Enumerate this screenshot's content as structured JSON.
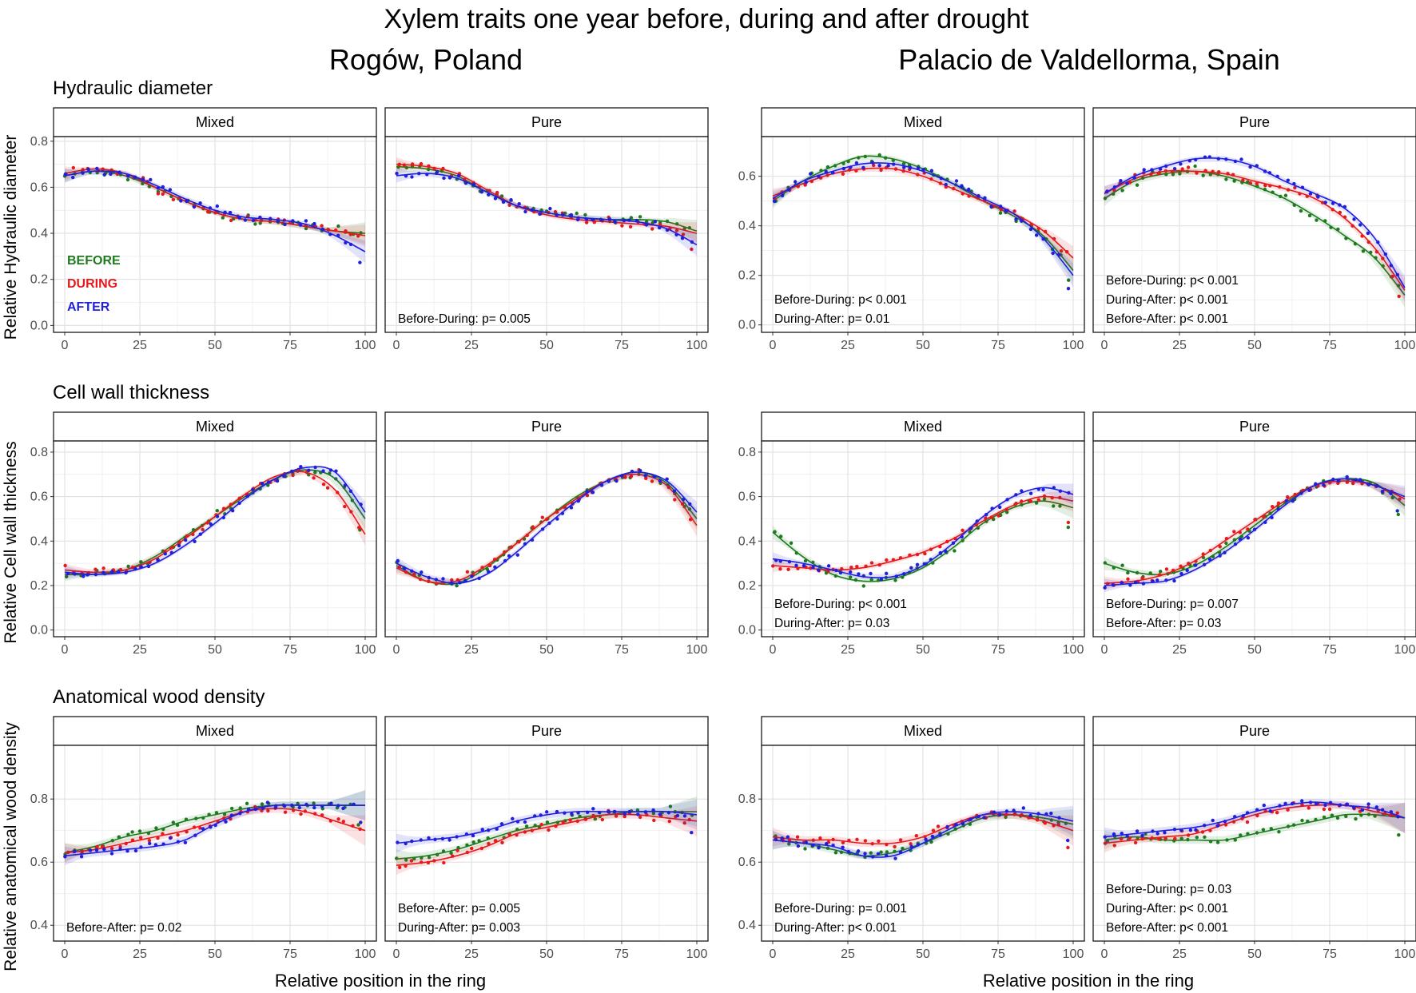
{
  "figure": {
    "title": "Xylem traits one year before, during and after drought",
    "sites": [
      "Rogów, Poland",
      "Palacio de Valdellorma, Spain"
    ],
    "traits": [
      "Hydraulic diameter",
      "Cell wall thickness",
      "Anatomical wood density"
    ],
    "y_axis_titles": [
      "Relative Hydraulic diameter",
      "Relative Cell wall thickness",
      "Relative anatomical wood density"
    ],
    "x_axis_title": "Relative position in the ring",
    "facets": [
      "Mixed",
      "Pure"
    ]
  },
  "colors": {
    "BEFORE": "#1e7a1e",
    "DURING": "#e41a1c",
    "AFTER": "#1f1fdc",
    "grid": "#ebebeb",
    "band": "#bfbfbf"
  },
  "legend": [
    {
      "label": "BEFORE",
      "color": "#1e7a1e"
    },
    {
      "label": "DURING",
      "color": "#e41a1c"
    },
    {
      "label": "AFTER",
      "color": "#1f1fdc"
    }
  ],
  "chart_data": [
    {
      "type": "line",
      "site": "Rogów, Poland",
      "facet": "Mixed",
      "trait": "Hydraulic diameter",
      "x": [
        0,
        10,
        20,
        30,
        40,
        50,
        60,
        70,
        80,
        90,
        100
      ],
      "xlim": [
        0,
        100
      ],
      "ylim": [
        -0.03,
        0.82
      ],
      "yticks": [
        0.0,
        0.2,
        0.4,
        0.6,
        0.8
      ],
      "xticks": [
        0,
        25,
        50,
        75,
        100
      ],
      "series": [
        {
          "name": "BEFORE",
          "values": [
            0.65,
            0.67,
            0.65,
            0.6,
            0.54,
            0.49,
            0.46,
            0.45,
            0.43,
            0.41,
            0.4
          ]
        },
        {
          "name": "DURING",
          "values": [
            0.66,
            0.68,
            0.66,
            0.6,
            0.54,
            0.49,
            0.46,
            0.45,
            0.43,
            0.41,
            0.39
          ]
        },
        {
          "name": "AFTER",
          "values": [
            0.65,
            0.67,
            0.66,
            0.61,
            0.55,
            0.5,
            0.47,
            0.46,
            0.44,
            0.39,
            0.32
          ]
        }
      ],
      "annotations": []
    },
    {
      "type": "line",
      "site": "Rogów, Poland",
      "facet": "Pure",
      "trait": "Hydraulic diameter",
      "x": [
        0,
        10,
        20,
        30,
        40,
        50,
        60,
        70,
        80,
        90,
        100
      ],
      "xlim": [
        0,
        100
      ],
      "ylim": [
        -0.03,
        0.82
      ],
      "yticks": [
        0.0,
        0.2,
        0.4,
        0.6,
        0.8
      ],
      "xticks": [
        0,
        25,
        50,
        75,
        100
      ],
      "series": [
        {
          "name": "BEFORE",
          "values": [
            0.69,
            0.68,
            0.65,
            0.58,
            0.52,
            0.49,
            0.47,
            0.46,
            0.46,
            0.45,
            0.41
          ]
        },
        {
          "name": "DURING",
          "values": [
            0.7,
            0.69,
            0.66,
            0.59,
            0.52,
            0.48,
            0.46,
            0.45,
            0.44,
            0.43,
            0.4
          ]
        },
        {
          "name": "AFTER",
          "values": [
            0.65,
            0.66,
            0.64,
            0.58,
            0.52,
            0.49,
            0.47,
            0.46,
            0.45,
            0.42,
            0.35
          ]
        }
      ],
      "annotations": [
        "Before-During: p= 0.005"
      ]
    },
    {
      "type": "line",
      "site": "Palacio de Valdellorma, Spain",
      "facet": "Mixed",
      "trait": "Hydraulic diameter",
      "x": [
        0,
        10,
        20,
        30,
        40,
        50,
        60,
        70,
        80,
        90,
        100
      ],
      "xlim": [
        0,
        100
      ],
      "ylim": [
        -0.03,
        0.76
      ],
      "yticks": [
        0.0,
        0.2,
        0.4,
        0.6
      ],
      "xticks": [
        0,
        25,
        50,
        75,
        100
      ],
      "series": [
        {
          "name": "BEFORE",
          "values": [
            0.5,
            0.58,
            0.64,
            0.68,
            0.67,
            0.63,
            0.57,
            0.5,
            0.44,
            0.36,
            0.22
          ]
        },
        {
          "name": "DURING",
          "values": [
            0.52,
            0.57,
            0.61,
            0.63,
            0.63,
            0.6,
            0.55,
            0.5,
            0.45,
            0.38,
            0.27
          ]
        },
        {
          "name": "AFTER",
          "values": [
            0.51,
            0.58,
            0.62,
            0.65,
            0.65,
            0.62,
            0.57,
            0.51,
            0.45,
            0.35,
            0.2
          ]
        }
      ],
      "annotations": [
        "Before-During: p< 0.001",
        "During-After: p= 0.01"
      ]
    },
    {
      "type": "line",
      "site": "Palacio de Valdellorma, Spain",
      "facet": "Pure",
      "trait": "Hydraulic diameter",
      "x": [
        0,
        10,
        20,
        30,
        40,
        50,
        60,
        70,
        80,
        90,
        100
      ],
      "xlim": [
        0,
        100
      ],
      "ylim": [
        -0.03,
        0.76
      ],
      "yticks": [
        0.0,
        0.2,
        0.4,
        0.6
      ],
      "xticks": [
        0,
        25,
        50,
        75,
        100
      ],
      "series": [
        {
          "name": "BEFORE",
          "values": [
            0.51,
            0.58,
            0.61,
            0.62,
            0.6,
            0.56,
            0.51,
            0.44,
            0.36,
            0.27,
            0.12
          ]
        },
        {
          "name": "DURING",
          "values": [
            0.53,
            0.59,
            0.62,
            0.62,
            0.61,
            0.58,
            0.55,
            0.51,
            0.43,
            0.31,
            0.14
          ]
        },
        {
          "name": "AFTER",
          "values": [
            0.53,
            0.6,
            0.64,
            0.67,
            0.67,
            0.64,
            0.58,
            0.53,
            0.47,
            0.35,
            0.15
          ]
        }
      ],
      "annotations": [
        "Before-During: p< 0.001",
        "During-After: p< 0.001",
        "Before-After: p< 0.001"
      ]
    },
    {
      "type": "line",
      "site": "Rogów, Poland",
      "facet": "Mixed",
      "trait": "Cell wall thickness",
      "x": [
        0,
        10,
        20,
        30,
        40,
        50,
        60,
        70,
        80,
        90,
        100
      ],
      "xlim": [
        0,
        100
      ],
      "ylim": [
        -0.03,
        0.85
      ],
      "yticks": [
        0.0,
        0.2,
        0.4,
        0.6,
        0.8
      ],
      "xticks": [
        0,
        25,
        50,
        75,
        100
      ],
      "series": [
        {
          "name": "BEFORE",
          "values": [
            0.25,
            0.25,
            0.27,
            0.33,
            0.42,
            0.51,
            0.6,
            0.68,
            0.72,
            0.68,
            0.5
          ]
        },
        {
          "name": "DURING",
          "values": [
            0.27,
            0.26,
            0.27,
            0.32,
            0.41,
            0.51,
            0.61,
            0.69,
            0.71,
            0.63,
            0.43
          ]
        },
        {
          "name": "AFTER",
          "values": [
            0.26,
            0.25,
            0.26,
            0.3,
            0.38,
            0.48,
            0.59,
            0.68,
            0.73,
            0.71,
            0.53
          ]
        }
      ],
      "annotations": []
    },
    {
      "type": "line",
      "site": "Rogów, Poland",
      "facet": "Pure",
      "trait": "Cell wall thickness",
      "x": [
        0,
        10,
        20,
        30,
        40,
        50,
        60,
        70,
        80,
        90,
        100
      ],
      "xlim": [
        0,
        100
      ],
      "ylim": [
        -0.03,
        0.85
      ],
      "yticks": [
        0.0,
        0.2,
        0.4,
        0.6,
        0.8
      ],
      "xticks": [
        0,
        25,
        50,
        75,
        100
      ],
      "series": [
        {
          "name": "BEFORE",
          "values": [
            0.29,
            0.22,
            0.21,
            0.28,
            0.39,
            0.5,
            0.6,
            0.67,
            0.71,
            0.66,
            0.5
          ]
        },
        {
          "name": "DURING",
          "values": [
            0.28,
            0.22,
            0.22,
            0.29,
            0.39,
            0.5,
            0.59,
            0.67,
            0.7,
            0.65,
            0.47
          ]
        },
        {
          "name": "AFTER",
          "values": [
            0.3,
            0.24,
            0.21,
            0.25,
            0.35,
            0.47,
            0.58,
            0.67,
            0.71,
            0.67,
            0.53
          ]
        }
      ],
      "annotations": []
    },
    {
      "type": "line",
      "site": "Palacio de Valdellorma, Spain",
      "facet": "Mixed",
      "trait": "Cell wall thickness",
      "x": [
        0,
        10,
        20,
        30,
        40,
        50,
        60,
        70,
        80,
        90,
        100
      ],
      "xlim": [
        0,
        100
      ],
      "ylim": [
        -0.03,
        0.85
      ],
      "yticks": [
        0.0,
        0.2,
        0.4,
        0.6,
        0.8
      ],
      "xticks": [
        0,
        25,
        50,
        75,
        100
      ],
      "series": [
        {
          "name": "BEFORE",
          "values": [
            0.44,
            0.33,
            0.25,
            0.22,
            0.23,
            0.28,
            0.37,
            0.48,
            0.55,
            0.58,
            0.55
          ]
        },
        {
          "name": "DURING",
          "values": [
            0.29,
            0.28,
            0.27,
            0.28,
            0.31,
            0.35,
            0.41,
            0.49,
            0.56,
            0.6,
            0.58
          ]
        },
        {
          "name": "AFTER",
          "values": [
            0.32,
            0.3,
            0.27,
            0.24,
            0.24,
            0.29,
            0.39,
            0.51,
            0.6,
            0.64,
            0.61
          ]
        }
      ],
      "annotations": [
        "Before-During: p< 0.001",
        "During-After: p= 0.03"
      ]
    },
    {
      "type": "line",
      "site": "Palacio de Valdellorma, Spain",
      "facet": "Pure",
      "trait": "Cell wall thickness",
      "x": [
        0,
        10,
        20,
        30,
        40,
        50,
        60,
        70,
        80,
        90,
        100
      ],
      "xlim": [
        0,
        100
      ],
      "ylim": [
        -0.03,
        0.85
      ],
      "yticks": [
        0.0,
        0.2,
        0.4,
        0.6,
        0.8
      ],
      "xticks": [
        0,
        25,
        50,
        75,
        100
      ],
      "series": [
        {
          "name": "BEFORE",
          "values": [
            0.3,
            0.26,
            0.25,
            0.29,
            0.37,
            0.47,
            0.57,
            0.65,
            0.68,
            0.66,
            0.56
          ]
        },
        {
          "name": "DURING",
          "values": [
            0.21,
            0.22,
            0.25,
            0.31,
            0.4,
            0.49,
            0.58,
            0.65,
            0.67,
            0.65,
            0.59
          ]
        },
        {
          "name": "AFTER",
          "values": [
            0.2,
            0.21,
            0.22,
            0.27,
            0.35,
            0.45,
            0.56,
            0.65,
            0.68,
            0.65,
            0.6
          ]
        }
      ],
      "annotations": [
        "Before-During: p= 0.007",
        "Before-After: p= 0.03"
      ]
    },
    {
      "type": "line",
      "site": "Rogów, Poland",
      "facet": "Mixed",
      "trait": "Anatomical wood density",
      "x": [
        0,
        10,
        20,
        30,
        40,
        50,
        60,
        70,
        80,
        90,
        100
      ],
      "xlim": [
        0,
        100
      ],
      "ylim": [
        0.35,
        0.97
      ],
      "yticks": [
        0.4,
        0.6,
        0.8
      ],
      "xticks": [
        0,
        25,
        50,
        75,
        100
      ],
      "series": [
        {
          "name": "BEFORE",
          "values": [
            0.63,
            0.65,
            0.68,
            0.7,
            0.73,
            0.75,
            0.77,
            0.78,
            0.78,
            0.78,
            0.78
          ]
        },
        {
          "name": "DURING",
          "values": [
            0.63,
            0.64,
            0.66,
            0.68,
            0.7,
            0.73,
            0.76,
            0.77,
            0.76,
            0.73,
            0.7
          ]
        },
        {
          "name": "AFTER",
          "values": [
            0.62,
            0.63,
            0.64,
            0.65,
            0.67,
            0.72,
            0.76,
            0.78,
            0.78,
            0.78,
            0.78
          ]
        }
      ],
      "annotations": [
        "Before-After: p= 0.02"
      ]
    },
    {
      "type": "line",
      "site": "Rogów, Poland",
      "facet": "Pure",
      "trait": "Anatomical wood density",
      "x": [
        0,
        10,
        20,
        30,
        40,
        50,
        60,
        70,
        80,
        90,
        100
      ],
      "xlim": [
        0,
        100
      ],
      "ylim": [
        0.35,
        0.97
      ],
      "yticks": [
        0.4,
        0.6,
        0.8
      ],
      "xticks": [
        0,
        25,
        50,
        75,
        100
      ],
      "series": [
        {
          "name": "BEFORE",
          "values": [
            0.61,
            0.62,
            0.64,
            0.67,
            0.7,
            0.72,
            0.74,
            0.75,
            0.76,
            0.76,
            0.76
          ]
        },
        {
          "name": "DURING",
          "values": [
            0.59,
            0.6,
            0.62,
            0.65,
            0.69,
            0.71,
            0.73,
            0.75,
            0.75,
            0.74,
            0.73
          ]
        },
        {
          "name": "AFTER",
          "values": [
            0.66,
            0.67,
            0.68,
            0.7,
            0.73,
            0.75,
            0.76,
            0.76,
            0.76,
            0.76,
            0.75
          ]
        }
      ],
      "annotations": [
        "Before-After: p= 0.005",
        "During-After: p= 0.003"
      ]
    },
    {
      "type": "line",
      "site": "Palacio de Valdellorma, Spain",
      "facet": "Mixed",
      "trait": "Anatomical wood density",
      "x": [
        0,
        10,
        20,
        30,
        40,
        50,
        60,
        70,
        80,
        90,
        100
      ],
      "xlim": [
        0,
        100
      ],
      "ylim": [
        0.35,
        0.97
      ],
      "yticks": [
        0.4,
        0.6,
        0.8
      ],
      "xticks": [
        0,
        25,
        50,
        75,
        100
      ],
      "series": [
        {
          "name": "BEFORE",
          "values": [
            0.67,
            0.66,
            0.64,
            0.62,
            0.63,
            0.66,
            0.7,
            0.74,
            0.75,
            0.74,
            0.72
          ]
        },
        {
          "name": "DURING",
          "values": [
            0.68,
            0.67,
            0.67,
            0.66,
            0.66,
            0.68,
            0.72,
            0.75,
            0.75,
            0.73,
            0.7
          ]
        },
        {
          "name": "AFTER",
          "values": [
            0.67,
            0.66,
            0.65,
            0.62,
            0.62,
            0.66,
            0.71,
            0.75,
            0.76,
            0.75,
            0.73
          ]
        }
      ],
      "annotations": [
        "Before-During: p= 0.001",
        "During-After: p< 0.001"
      ]
    },
    {
      "type": "line",
      "site": "Palacio de Valdellorma, Spain",
      "facet": "Pure",
      "trait": "Anatomical wood density",
      "x": [
        0,
        10,
        20,
        30,
        40,
        50,
        60,
        70,
        80,
        90,
        100
      ],
      "xlim": [
        0,
        100
      ],
      "ylim": [
        0.35,
        0.97
      ],
      "yticks": [
        0.4,
        0.6,
        0.8
      ],
      "xticks": [
        0,
        25,
        50,
        75,
        100
      ],
      "series": [
        {
          "name": "BEFORE",
          "values": [
            0.67,
            0.68,
            0.67,
            0.67,
            0.67,
            0.69,
            0.71,
            0.73,
            0.75,
            0.75,
            0.74
          ]
        },
        {
          "name": "DURING",
          "values": [
            0.66,
            0.67,
            0.68,
            0.69,
            0.72,
            0.75,
            0.77,
            0.78,
            0.78,
            0.76,
            0.74
          ]
        },
        {
          "name": "AFTER",
          "values": [
            0.68,
            0.69,
            0.7,
            0.71,
            0.73,
            0.76,
            0.78,
            0.79,
            0.78,
            0.77,
            0.74
          ]
        }
      ],
      "annotations": [
        "Before-During: p= 0.03",
        "During-After: p< 0.001",
        "Before-After: p< 0.001"
      ]
    }
  ]
}
